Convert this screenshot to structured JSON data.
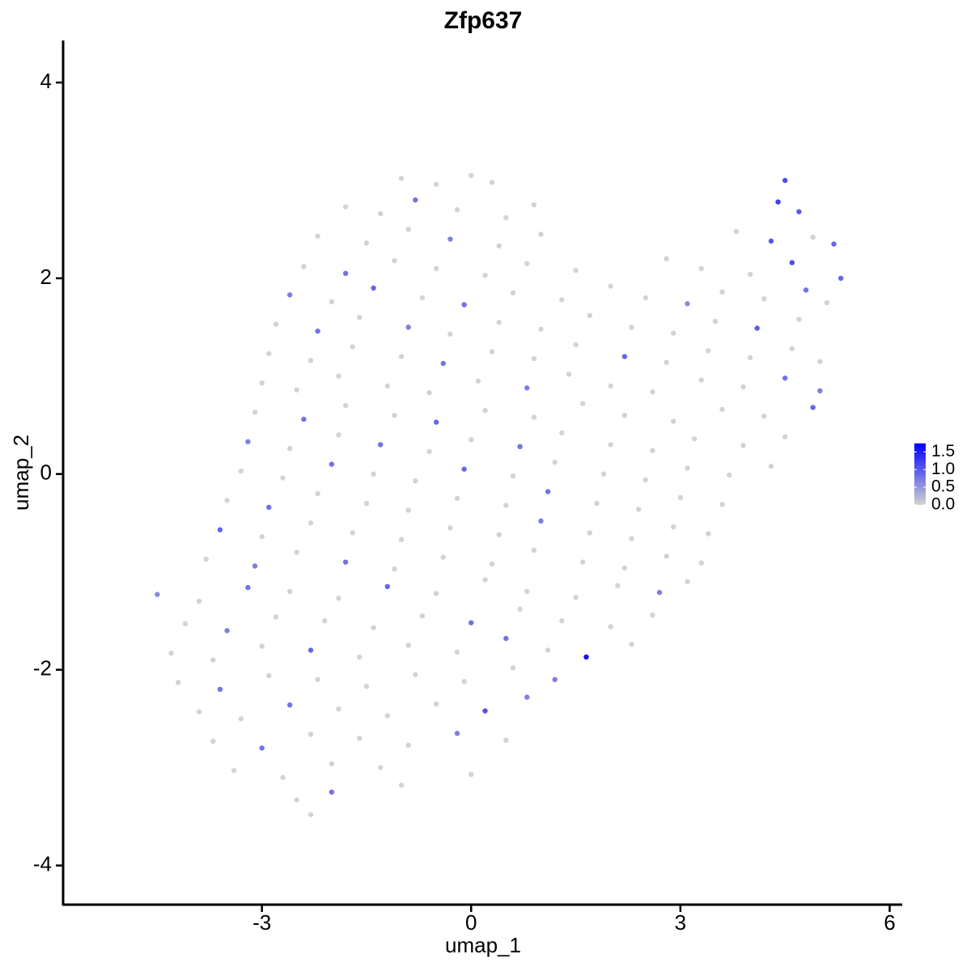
{
  "chart_data": {
    "type": "scatter",
    "title": "Zfp637",
    "x_label": "umap_1",
    "y_label": "umap_2",
    "xlim": [
      -5.85,
      6.18
    ],
    "ylim": [
      -4.4,
      4.43
    ],
    "xticks": [
      -3,
      0,
      3,
      6
    ],
    "yticks": [
      -4,
      -2,
      0,
      2,
      4
    ],
    "grid": false,
    "color_low": "#d3d3d3",
    "color_high": "#0000ff",
    "color_lim": [
      0,
      1.74
    ],
    "color_ticks": [
      {
        "value": 0,
        "label": "0.0"
      },
      0.5,
      {
        "value": 1,
        "label": "1.0"
      },
      1.5
    ],
    "x": [
      -1.0,
      -0.5,
      0.0,
      0.3,
      4.5,
      -1.8,
      -1.3,
      -0.8,
      -0.2,
      0.5,
      0.9,
      4.4,
      4.7,
      -2.2,
      -1.5,
      -0.9,
      -0.3,
      0.4,
      1.0,
      3.8,
      4.3,
      4.9,
      5.2,
      -2.4,
      -1.8,
      -1.1,
      -0.5,
      0.2,
      0.8,
      1.5,
      2.8,
      3.3,
      4.0,
      4.6,
      5.3,
      -2.6,
      -2.0,
      -1.4,
      -0.7,
      -0.1,
      0.6,
      1.3,
      2.0,
      2.5,
      3.1,
      3.6,
      4.2,
      4.8,
      5.1,
      -2.8,
      -2.2,
      -1.6,
      -0.9,
      -0.3,
      0.4,
      1.0,
      1.7,
      2.3,
      2.9,
      3.5,
      4.1,
      4.7,
      -2.9,
      -2.3,
      -1.7,
      -1.0,
      -0.4,
      0.3,
      0.9,
      1.5,
      2.2,
      2.8,
      3.4,
      4.0,
      4.6,
      5.0,
      -3.0,
      -2.5,
      -1.9,
      -1.2,
      -0.6,
      0.1,
      0.8,
      1.4,
      2.0,
      2.6,
      3.3,
      3.9,
      4.5,
      5.0,
      -3.1,
      -2.4,
      -1.8,
      -1.1,
      -0.5,
      0.2,
      0.9,
      1.6,
      2.2,
      2.9,
      3.6,
      4.2,
      4.9,
      -3.2,
      -2.6,
      -1.9,
      -1.3,
      -0.6,
      0.0,
      0.7,
      1.3,
      2.0,
      2.6,
      3.2,
      3.9,
      4.5,
      -3.3,
      -2.7,
      -2.0,
      -1.4,
      -0.8,
      -0.1,
      0.6,
      1.2,
      1.9,
      2.5,
      3.1,
      3.7,
      4.3,
      -3.5,
      -2.9,
      -2.2,
      -1.5,
      -0.9,
      -0.2,
      0.5,
      1.1,
      1.8,
      2.4,
      3.0,
      3.6,
      -3.6,
      -3.0,
      -2.3,
      -1.7,
      -1.0,
      -0.3,
      0.4,
      1.0,
      1.7,
      2.3,
      2.9,
      3.4,
      -3.8,
      -3.1,
      -2.5,
      -1.8,
      -1.1,
      -0.4,
      0.3,
      0.9,
      1.6,
      2.2,
      2.8,
      3.3,
      -4.5,
      -3.9,
      -3.2,
      -2.6,
      -1.9,
      -1.2,
      -0.5,
      0.2,
      0.8,
      1.5,
      2.1,
      2.7,
      3.1,
      -4.1,
      -3.5,
      -2.8,
      -2.1,
      -1.4,
      -0.7,
      0.0,
      0.7,
      1.3,
      2.0,
      2.6,
      -4.3,
      -3.7,
      -3.0,
      -2.3,
      -1.6,
      -0.9,
      -0.2,
      0.5,
      1.1,
      1.65,
      2.3,
      -4.2,
      -3.6,
      -2.9,
      -2.2,
      -1.5,
      -0.8,
      -0.1,
      0.6,
      1.2,
      -3.9,
      -3.3,
      -2.6,
      -1.9,
      -1.2,
      -0.5,
      0.2,
      0.8,
      -3.7,
      -3.0,
      -2.3,
      -1.6,
      -0.9,
      -0.2,
      0.5,
      -3.4,
      -2.7,
      -2.0,
      -1.3,
      0.0,
      -2.5,
      -2.0,
      -1.0,
      -2.3
    ],
    "values": [
      3.02,
      2.96,
      3.05,
      2.98,
      3.0,
      2.73,
      2.66,
      2.8,
      2.7,
      2.62,
      2.75,
      2.78,
      2.68,
      2.43,
      2.36,
      2.5,
      2.4,
      2.33,
      2.45,
      2.48,
      2.38,
      2.42,
      2.35,
      2.12,
      2.05,
      2.18,
      2.1,
      2.03,
      2.15,
      2.08,
      2.2,
      2.1,
      2.04,
      2.16,
      2.0,
      1.83,
      1.76,
      1.9,
      1.8,
      1.73,
      1.85,
      1.78,
      1.92,
      1.8,
      1.74,
      1.86,
      1.79,
      1.88,
      1.75,
      1.53,
      1.46,
      1.6,
      1.5,
      1.43,
      1.55,
      1.48,
      1.62,
      1.5,
      1.44,
      1.56,
      1.49,
      1.58,
      1.23,
      1.16,
      1.3,
      1.2,
      1.13,
      1.25,
      1.18,
      1.32,
      1.2,
      1.14,
      1.26,
      1.19,
      1.28,
      1.15,
      0.93,
      0.86,
      1.0,
      0.9,
      0.83,
      0.95,
      0.88,
      1.02,
      0.9,
      0.84,
      0.96,
      0.89,
      0.98,
      0.85,
      0.63,
      0.56,
      0.7,
      0.6,
      0.53,
      0.65,
      0.58,
      0.72,
      0.6,
      0.54,
      0.66,
      0.59,
      0.68,
      0.33,
      0.26,
      0.4,
      0.3,
      0.23,
      0.35,
      0.28,
      0.42,
      0.3,
      0.24,
      0.36,
      0.29,
      0.38,
      0.03,
      -0.04,
      0.1,
      0.0,
      -0.07,
      0.05,
      -0.02,
      0.12,
      0.0,
      -0.06,
      0.06,
      -0.01,
      0.08,
      -0.27,
      -0.34,
      -0.2,
      -0.3,
      -0.37,
      -0.25,
      -0.32,
      -0.18,
      -0.3,
      -0.36,
      -0.24,
      -0.31,
      -0.57,
      -0.64,
      -0.5,
      -0.6,
      -0.67,
      -0.55,
      -0.62,
      -0.48,
      -0.6,
      -0.66,
      -0.54,
      -0.61,
      -0.87,
      -0.94,
      -0.8,
      -0.9,
      -0.97,
      -0.85,
      -0.92,
      -0.78,
      -0.9,
      -0.96,
      -0.84,
      -0.91,
      -1.23,
      -1.3,
      -1.16,
      -1.2,
      -1.27,
      -1.15,
      -1.22,
      -1.08,
      -1.2,
      -1.26,
      -1.14,
      -1.21,
      -1.1,
      -1.53,
      -1.6,
      -1.46,
      -1.5,
      -1.57,
      -1.45,
      -1.52,
      -1.38,
      -1.5,
      -1.56,
      -1.44,
      -1.83,
      -1.9,
      -1.76,
      -1.8,
      -1.87,
      -1.75,
      -1.82,
      -1.68,
      -1.8,
      -1.87,
      -1.74,
      -2.13,
      -2.2,
      -2.06,
      -2.1,
      -2.17,
      -2.05,
      -2.12,
      -1.98,
      -2.1,
      -2.43,
      -2.5,
      -2.36,
      -2.4,
      -2.47,
      -2.35,
      -2.42,
      -2.28,
      -2.73,
      -2.8,
      -2.66,
      -2.7,
      -2.77,
      -2.65,
      -2.72,
      -3.03,
      -3.1,
      -2.96,
      -3.0,
      -3.07,
      -3.33,
      -3.25,
      -3.18,
      -3.48
    ],
    "expression": [
      0,
      0,
      0,
      0,
      1.1,
      0,
      0,
      0.8,
      0,
      0,
      0,
      1.2,
      1.0,
      0,
      0,
      0,
      0.7,
      0,
      0,
      0,
      1.0,
      0,
      0.9,
      0,
      0.8,
      0,
      0,
      0,
      0,
      0,
      0,
      0,
      0,
      1.1,
      0.9,
      0.7,
      0,
      0.9,
      0,
      0.8,
      0,
      0,
      0,
      0,
      0.6,
      0,
      0,
      0.8,
      0,
      0,
      0.8,
      0,
      0.7,
      0,
      0,
      0,
      0,
      0,
      0,
      0,
      1.0,
      0,
      0,
      0,
      0,
      0,
      0.8,
      0,
      0,
      0,
      0.9,
      0,
      0,
      0,
      0,
      0,
      0,
      0,
      0,
      0,
      0,
      0,
      0.7,
      0,
      0,
      0,
      0,
      0,
      0.8,
      0.7,
      0,
      0.8,
      0,
      0,
      0.9,
      0,
      0,
      0,
      0,
      0,
      0,
      0,
      0.9,
      0.7,
      0,
      0,
      0.8,
      0,
      0,
      0.8,
      0,
      0,
      0,
      0,
      0,
      0,
      0,
      0,
      0.8,
      0,
      0,
      0.9,
      0,
      0,
      0,
      0,
      0,
      0,
      0,
      0,
      0.8,
      0,
      0,
      0,
      0,
      0,
      0.8,
      0,
      0,
      0,
      0,
      0.9,
      0,
      0,
      0,
      0,
      0,
      0,
      0.7,
      0,
      0,
      0,
      0,
      0,
      0.7,
      0,
      0.8,
      0,
      0,
      0,
      0,
      0,
      0,
      0,
      0,
      0.6,
      0,
      0.8,
      0,
      0,
      0.9,
      0,
      0,
      0,
      0,
      0,
      0.7,
      0,
      0,
      0.7,
      0,
      0,
      0,
      0,
      0.8,
      0,
      0,
      0,
      0,
      0,
      0,
      0,
      0.9,
      0,
      0,
      0,
      0.8,
      0,
      1.6,
      0,
      0,
      0.8,
      0,
      0,
      0,
      0,
      0,
      0,
      0.7,
      0,
      0,
      0.8,
      0,
      0,
      0,
      1.1,
      0.7,
      0,
      0.8,
      0,
      0,
      0,
      0.7,
      0,
      0,
      0,
      0,
      0,
      0,
      0,
      0.8,
      0,
      0
    ]
  }
}
